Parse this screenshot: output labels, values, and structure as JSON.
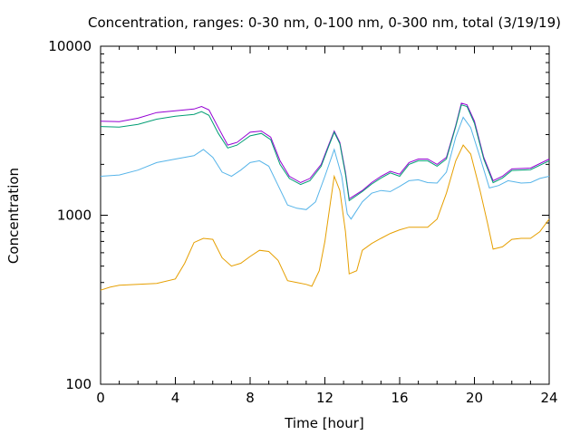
{
  "chart_data": {
    "type": "line",
    "title": "Concentration, ranges: 0-30 nm, 0-100 nm, 0-300 nm, total (3/19/19)",
    "xlabel": "Time [hour]",
    "ylabel": "Concentration",
    "xlim": [
      0,
      24
    ],
    "ylim": [
      100,
      10000
    ],
    "yscale": "log",
    "grid": false,
    "legend": "none",
    "xticks": [
      0,
      4,
      8,
      12,
      16,
      20,
      24
    ],
    "xtick_labels": [
      "0",
      "4",
      "8",
      "12",
      "16",
      "20",
      "24"
    ],
    "yticks": [
      100,
      1000,
      10000
    ],
    "ytick_labels": [
      "100",
      "1000",
      "10000"
    ],
    "series": [
      {
        "color": "#9400d3",
        "points": [
          [
            0,
            3600
          ],
          [
            1,
            3580
          ],
          [
            2,
            3750
          ],
          [
            3,
            4050
          ],
          [
            4,
            4150
          ],
          [
            5,
            4250
          ],
          [
            5.4,
            4400
          ],
          [
            5.8,
            4200
          ],
          [
            6.3,
            3300
          ],
          [
            6.8,
            2600
          ],
          [
            7.3,
            2700
          ],
          [
            8,
            3100
          ],
          [
            8.6,
            3150
          ],
          [
            9.1,
            2900
          ],
          [
            9.6,
            2100
          ],
          [
            10.1,
            1700
          ],
          [
            10.7,
            1560
          ],
          [
            11.2,
            1650
          ],
          [
            11.8,
            2000
          ],
          [
            12.2,
            2600
          ],
          [
            12.5,
            3150
          ],
          [
            12.8,
            2700
          ],
          [
            13.1,
            1800
          ],
          [
            13.3,
            1250
          ],
          [
            14,
            1400
          ],
          [
            14.5,
            1560
          ],
          [
            15,
            1700
          ],
          [
            15.5,
            1820
          ],
          [
            16,
            1750
          ],
          [
            16.5,
            2050
          ],
          [
            17,
            2150
          ],
          [
            17.5,
            2150
          ],
          [
            18,
            2000
          ],
          [
            18.5,
            2200
          ],
          [
            19,
            3400
          ],
          [
            19.3,
            4600
          ],
          [
            19.6,
            4500
          ],
          [
            20,
            3600
          ],
          [
            20.5,
            2200
          ],
          [
            21,
            1600
          ],
          [
            21.5,
            1700
          ],
          [
            22,
            1880
          ],
          [
            23,
            1900
          ],
          [
            24,
            2150
          ]
        ]
      },
      {
        "color": "#009e73",
        "points": [
          [
            0,
            3350
          ],
          [
            1,
            3320
          ],
          [
            2,
            3450
          ],
          [
            3,
            3700
          ],
          [
            4,
            3850
          ],
          [
            5,
            3950
          ],
          [
            5.4,
            4100
          ],
          [
            5.8,
            3900
          ],
          [
            6.3,
            3050
          ],
          [
            6.8,
            2500
          ],
          [
            7.3,
            2600
          ],
          [
            8,
            2950
          ],
          [
            8.6,
            3050
          ],
          [
            9.1,
            2800
          ],
          [
            9.6,
            2000
          ],
          [
            10.1,
            1650
          ],
          [
            10.7,
            1520
          ],
          [
            11.2,
            1600
          ],
          [
            11.8,
            1950
          ],
          [
            12.2,
            2550
          ],
          [
            12.5,
            3100
          ],
          [
            12.8,
            2650
          ],
          [
            13.1,
            1750
          ],
          [
            13.3,
            1220
          ],
          [
            14,
            1380
          ],
          [
            14.5,
            1530
          ],
          [
            15,
            1660
          ],
          [
            15.5,
            1780
          ],
          [
            16,
            1700
          ],
          [
            16.5,
            2000
          ],
          [
            17,
            2100
          ],
          [
            17.5,
            2100
          ],
          [
            18,
            1950
          ],
          [
            18.5,
            2150
          ],
          [
            19,
            3350
          ],
          [
            19.3,
            4500
          ],
          [
            19.6,
            4400
          ],
          [
            20,
            3500
          ],
          [
            20.5,
            2150
          ],
          [
            21,
            1560
          ],
          [
            21.5,
            1660
          ],
          [
            22,
            1840
          ],
          [
            23,
            1860
          ],
          [
            24,
            2100
          ]
        ]
      },
      {
        "color": "#56b4e9",
        "points": [
          [
            0,
            1700
          ],
          [
            1,
            1730
          ],
          [
            2,
            1850
          ],
          [
            3,
            2050
          ],
          [
            4,
            2150
          ],
          [
            5,
            2250
          ],
          [
            5.5,
            2450
          ],
          [
            6,
            2200
          ],
          [
            6.5,
            1800
          ],
          [
            7,
            1700
          ],
          [
            7.5,
            1850
          ],
          [
            8,
            2050
          ],
          [
            8.5,
            2100
          ],
          [
            9,
            1950
          ],
          [
            9.5,
            1500
          ],
          [
            10,
            1150
          ],
          [
            10.5,
            1100
          ],
          [
            11,
            1080
          ],
          [
            11.5,
            1200
          ],
          [
            12,
            1700
          ],
          [
            12.5,
            2450
          ],
          [
            12.9,
            1700
          ],
          [
            13.2,
            1020
          ],
          [
            13.4,
            950
          ],
          [
            14,
            1200
          ],
          [
            14.5,
            1350
          ],
          [
            15,
            1400
          ],
          [
            15.5,
            1380
          ],
          [
            16,
            1480
          ],
          [
            16.5,
            1600
          ],
          [
            17,
            1620
          ],
          [
            17.5,
            1560
          ],
          [
            18,
            1550
          ],
          [
            18.5,
            1800
          ],
          [
            19,
            2900
          ],
          [
            19.4,
            3800
          ],
          [
            19.8,
            3300
          ],
          [
            20.3,
            2200
          ],
          [
            20.8,
            1450
          ],
          [
            21.3,
            1500
          ],
          [
            21.8,
            1600
          ],
          [
            22.5,
            1550
          ],
          [
            23,
            1560
          ],
          [
            23.5,
            1650
          ],
          [
            24,
            1700
          ]
        ]
      },
      {
        "color": "#e69f00",
        "points": [
          [
            0,
            360
          ],
          [
            0.5,
            375
          ],
          [
            1,
            385
          ],
          [
            2,
            390
          ],
          [
            3,
            395
          ],
          [
            4,
            420
          ],
          [
            4.5,
            520
          ],
          [
            5,
            690
          ],
          [
            5.5,
            730
          ],
          [
            6,
            720
          ],
          [
            6.5,
            560
          ],
          [
            7,
            500
          ],
          [
            7.5,
            520
          ],
          [
            8,
            570
          ],
          [
            8.5,
            620
          ],
          [
            9,
            610
          ],
          [
            9.5,
            540
          ],
          [
            10,
            410
          ],
          [
            10.5,
            400
          ],
          [
            11,
            390
          ],
          [
            11.3,
            380
          ],
          [
            11.7,
            470
          ],
          [
            12,
            700
          ],
          [
            12.3,
            1200
          ],
          [
            12.5,
            1700
          ],
          [
            12.8,
            1400
          ],
          [
            13.1,
            800
          ],
          [
            13.3,
            450
          ],
          [
            13.7,
            470
          ],
          [
            14,
            620
          ],
          [
            14.5,
            680
          ],
          [
            15,
            730
          ],
          [
            15.5,
            780
          ],
          [
            16,
            820
          ],
          [
            16.5,
            850
          ],
          [
            17,
            850
          ],
          [
            17.5,
            850
          ],
          [
            18,
            950
          ],
          [
            18.5,
            1350
          ],
          [
            19,
            2100
          ],
          [
            19.4,
            2600
          ],
          [
            19.8,
            2300
          ],
          [
            20.3,
            1400
          ],
          [
            20.7,
            900
          ],
          [
            21,
            630
          ],
          [
            21.5,
            650
          ],
          [
            22,
            720
          ],
          [
            22.5,
            730
          ],
          [
            23,
            730
          ],
          [
            23.5,
            800
          ],
          [
            24,
            950
          ]
        ]
      }
    ]
  }
}
